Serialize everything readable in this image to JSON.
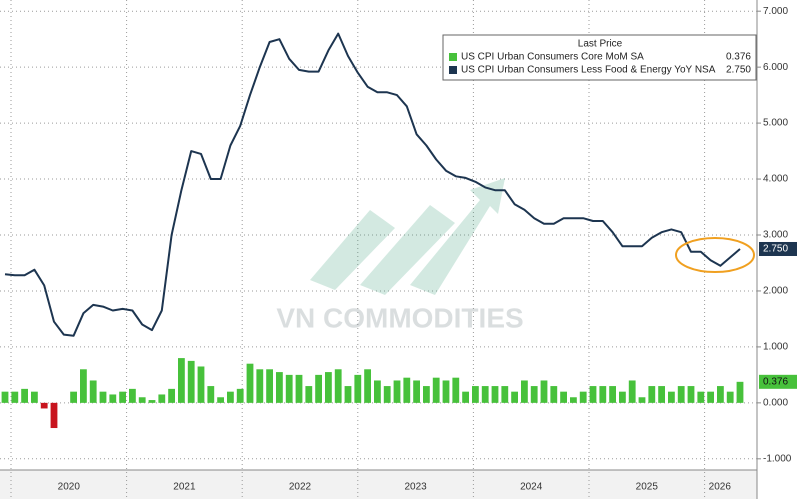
{
  "chart_data": {
    "type": "bar_line",
    "watermark": "VN COMMODITIES",
    "legend_title": "Last Price",
    "year_labels": [
      "2020",
      "2021",
      "2022",
      "2023",
      "2024",
      "2025",
      "2026"
    ],
    "ylim": [
      -1.2,
      7.2
    ],
    "yticks": [
      {
        "value": -1,
        "label": "-1.000"
      },
      {
        "value": 0,
        "label": "0.000"
      },
      {
        "value": 1,
        "label": "1.000"
      },
      {
        "value": 2,
        "label": "2.000"
      },
      {
        "value": 3,
        "label": "3.000"
      },
      {
        "value": 4,
        "label": "4.000"
      },
      {
        "value": 5,
        "label": "5.000"
      },
      {
        "value": 6,
        "label": "6.000"
      },
      {
        "value": 7,
        "label": "7.000"
      }
    ],
    "grid": true,
    "series": [
      {
        "name": "US CPI Urban Consumers Core MoM SA",
        "kind": "bar",
        "color": "#47c13b",
        "negative_color": "#c8141e",
        "last_value": 0.376,
        "last_value_label": "0.376",
        "values": [
          0.2,
          0.2,
          0.25,
          0.2,
          -0.1,
          -0.45,
          0.0,
          0.2,
          0.6,
          0.4,
          0.2,
          0.15,
          0.2,
          0.25,
          0.1,
          0.05,
          0.15,
          0.25,
          0.8,
          0.75,
          0.65,
          0.3,
          0.1,
          0.2,
          0.25,
          0.7,
          0.6,
          0.6,
          0.55,
          0.5,
          0.5,
          0.3,
          0.5,
          0.55,
          0.6,
          0.3,
          0.5,
          0.6,
          0.4,
          0.3,
          0.4,
          0.45,
          0.4,
          0.3,
          0.45,
          0.4,
          0.45,
          0.2,
          0.3,
          0.3,
          0.3,
          0.3,
          0.2,
          0.4,
          0.3,
          0.4,
          0.3,
          0.2,
          0.1,
          0.2,
          0.3,
          0.3,
          0.3,
          0.2,
          0.4,
          0.1,
          0.3,
          0.3,
          0.2,
          0.3,
          0.3,
          0.2,
          0.2,
          0.3,
          0.2,
          0.376
        ]
      },
      {
        "name": "US CPI Urban Consumers Less Food & Energy YoY NSA",
        "kind": "line",
        "color": "#1d3550",
        "last_value": 2.75,
        "last_value_label": "2.750",
        "values": [
          2.3,
          2.28,
          2.28,
          2.38,
          2.1,
          1.45,
          1.22,
          1.2,
          1.6,
          1.75,
          1.72,
          1.65,
          1.68,
          1.65,
          1.4,
          1.3,
          1.65,
          3.0,
          3.8,
          4.5,
          4.45,
          4.0,
          4.0,
          4.6,
          4.95,
          5.5,
          6.0,
          6.45,
          6.5,
          6.15,
          5.95,
          5.92,
          5.92,
          6.3,
          6.6,
          6.2,
          5.9,
          5.65,
          5.55,
          5.55,
          5.5,
          5.3,
          4.8,
          4.6,
          4.35,
          4.15,
          4.05,
          4.02,
          3.95,
          3.85,
          3.8,
          3.8,
          3.55,
          3.45,
          3.3,
          3.2,
          3.2,
          3.3,
          3.3,
          3.3,
          3.25,
          3.25,
          3.05,
          2.8,
          2.8,
          2.8,
          2.95,
          3.05,
          3.1,
          3.05,
          2.7,
          2.7,
          2.55,
          2.45,
          2.6,
          2.75
        ]
      }
    ]
  }
}
